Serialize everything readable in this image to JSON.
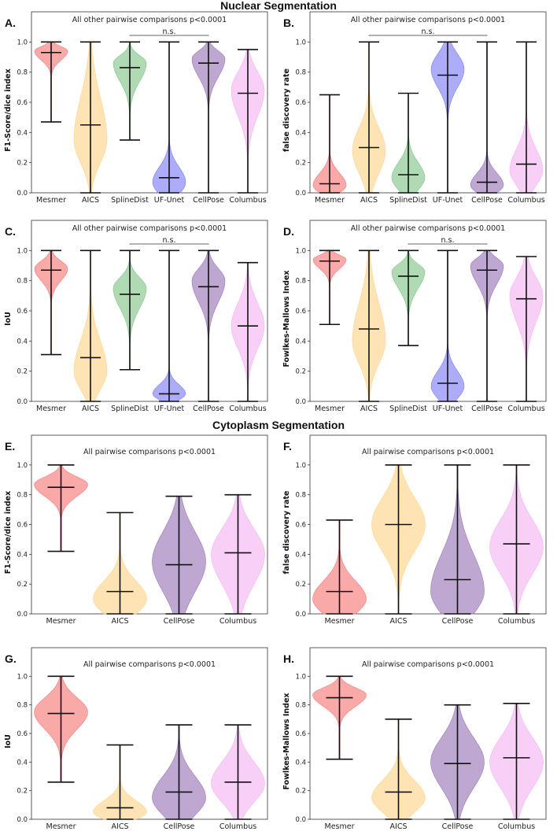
{
  "sections": {
    "nuclear": "Nuclear Segmentation",
    "cytoplasm": "Cytoplasm Segmentation"
  },
  "colors": {
    "Mesmer": "#f77b7b",
    "AICS": "#fdd58c",
    "SplineDist": "#86c68a",
    "UF-Unet": "#7f7ff6",
    "CellPose": "#9b7ab8",
    "Columbus": "#f4b6f1"
  },
  "chart_data": [
    {
      "id": "A",
      "type": "violin",
      "panel_label": "A.",
      "ylabel": "F1-Score/dice index",
      "ylim": [
        0,
        1.2
      ],
      "yticks": [
        "0.0",
        "0.2",
        "0.4",
        "0.6",
        "0.8",
        "1.0"
      ],
      "annotation": "All other pairwise comparisons p<0.0001",
      "ns": {
        "label": "n.s.",
        "between": [
          "SplineDist",
          "CellPose"
        ]
      },
      "categories": [
        "Mesmer",
        "AICS",
        "SplineDist",
        "UF-Unet",
        "CellPose",
        "Columbus"
      ],
      "violins": [
        {
          "min": 0.47,
          "max": 1.0,
          "median": 0.93,
          "mode": 0.94,
          "sd_low": 0.06,
          "sd_high": 0.03
        },
        {
          "min": 0.0,
          "max": 1.0,
          "median": 0.45,
          "mode": 0.35,
          "sd_low": 0.15,
          "sd_high": 0.28
        },
        {
          "min": 0.35,
          "max": 1.0,
          "median": 0.83,
          "mode": 0.86,
          "sd_low": 0.12,
          "sd_high": 0.05
        },
        {
          "min": 0.0,
          "max": 1.0,
          "median": 0.1,
          "mode": 0.07,
          "sd_low": 0.08,
          "sd_high": 0.1
        },
        {
          "min": 0.0,
          "max": 1.0,
          "median": 0.86,
          "mode": 0.89,
          "sd_low": 0.12,
          "sd_high": 0.05
        },
        {
          "min": 0.0,
          "max": 0.95,
          "median": 0.66,
          "mode": 0.68,
          "sd_low": 0.17,
          "sd_high": 0.12
        }
      ]
    },
    {
      "id": "B",
      "type": "violin",
      "panel_label": "B.",
      "ylabel": "false discovery rate",
      "ylim": [
        0,
        1.2
      ],
      "yticks": [
        "0.0",
        "0.2",
        "0.4",
        "0.6",
        "0.8",
        "1.0"
      ],
      "annotation": "All other pairwise comparisons p<0.0001",
      "ns": {
        "label": "n.s.",
        "between": [
          "AICS",
          "CellPose"
        ]
      },
      "categories": [
        "Mesmer",
        "AICS",
        "SplineDist",
        "UF-Unet",
        "CellPose",
        "Columbus"
      ],
      "violins": [
        {
          "min": 0.0,
          "max": 0.65,
          "median": 0.06,
          "mode": 0.05,
          "sd_low": 0.05,
          "sd_high": 0.08
        },
        {
          "min": 0.0,
          "max": 1.0,
          "median": 0.3,
          "mode": 0.28,
          "sd_low": 0.15,
          "sd_high": 0.15
        },
        {
          "min": 0.0,
          "max": 0.66,
          "median": 0.12,
          "mode": 0.1,
          "sd_low": 0.08,
          "sd_high": 0.1
        },
        {
          "min": 0.0,
          "max": 1.0,
          "median": 0.78,
          "mode": 0.82,
          "sd_low": 0.12,
          "sd_high": 0.1
        },
        {
          "min": 0.0,
          "max": 1.0,
          "median": 0.07,
          "mode": 0.05,
          "sd_low": 0.05,
          "sd_high": 0.08
        },
        {
          "min": 0.0,
          "max": 1.0,
          "median": 0.19,
          "mode": 0.15,
          "sd_low": 0.1,
          "sd_high": 0.14
        }
      ]
    },
    {
      "id": "C",
      "type": "violin",
      "panel_label": "C.",
      "ylabel": "IoU",
      "ylim": [
        0,
        1.2
      ],
      "yticks": [
        "0.0",
        "0.2",
        "0.4",
        "0.6",
        "0.8",
        "1.0"
      ],
      "annotation": "All other pairwise comparisons p<0.0001",
      "ns": {
        "label": "n.s.",
        "between": [
          "SplineDist",
          "CellPose"
        ]
      },
      "categories": [
        "Mesmer",
        "AICS",
        "SplineDist",
        "UF-Unet",
        "CellPose",
        "Columbus"
      ],
      "violins": [
        {
          "min": 0.31,
          "max": 1.0,
          "median": 0.87,
          "mode": 0.88,
          "sd_low": 0.08,
          "sd_high": 0.05
        },
        {
          "min": 0.0,
          "max": 1.0,
          "median": 0.29,
          "mode": 0.2,
          "sd_low": 0.12,
          "sd_high": 0.2
        },
        {
          "min": 0.21,
          "max": 1.0,
          "median": 0.71,
          "mode": 0.75,
          "sd_low": 0.13,
          "sd_high": 0.07
        },
        {
          "min": 0.0,
          "max": 1.0,
          "median": 0.05,
          "mode": 0.05,
          "sd_low": 0.04,
          "sd_high": 0.06
        },
        {
          "min": 0.0,
          "max": 1.0,
          "median": 0.76,
          "mode": 0.8,
          "sd_low": 0.14,
          "sd_high": 0.08
        },
        {
          "min": 0.0,
          "max": 0.92,
          "median": 0.5,
          "mode": 0.5,
          "sd_low": 0.15,
          "sd_high": 0.15
        }
      ]
    },
    {
      "id": "D",
      "type": "violin",
      "panel_label": "D.",
      "ylabel": "Fowlkes-Mallows Index",
      "ylim": [
        0,
        1.2
      ],
      "yticks": [
        "0.0",
        "0.2",
        "0.4",
        "0.6",
        "0.8",
        "1.0"
      ],
      "annotation": "All other pairwise comparisons p<0.0001",
      "ns": {
        "label": "n.s.",
        "between": [
          "SplineDist",
          "CellPose"
        ]
      },
      "categories": [
        "Mesmer",
        "AICS",
        "SplineDist",
        "UF-Unet",
        "CellPose",
        "Columbus"
      ],
      "violins": [
        {
          "min": 0.51,
          "max": 1.0,
          "median": 0.93,
          "mode": 0.94,
          "sd_low": 0.06,
          "sd_high": 0.03
        },
        {
          "min": 0.0,
          "max": 1.0,
          "median": 0.48,
          "mode": 0.4,
          "sd_low": 0.15,
          "sd_high": 0.25
        },
        {
          "min": 0.37,
          "max": 1.0,
          "median": 0.83,
          "mode": 0.86,
          "sd_low": 0.11,
          "sd_high": 0.05
        },
        {
          "min": 0.0,
          "max": 1.0,
          "median": 0.12,
          "mode": 0.1,
          "sd_low": 0.08,
          "sd_high": 0.1
        },
        {
          "min": 0.0,
          "max": 1.0,
          "median": 0.87,
          "mode": 0.9,
          "sd_low": 0.12,
          "sd_high": 0.05
        },
        {
          "min": 0.0,
          "max": 0.96,
          "median": 0.68,
          "mode": 0.7,
          "sd_low": 0.17,
          "sd_high": 0.12
        }
      ]
    },
    {
      "id": "E",
      "type": "violin",
      "panel_label": "E.",
      "ylabel": "F1-Score/dice index",
      "ylim": [
        0,
        1.2
      ],
      "yticks": [
        "0.0",
        "0.2",
        "0.4",
        "0.6",
        "0.8",
        "1.0"
      ],
      "annotation": "All pairwise comparisons p<0.0001",
      "ns": null,
      "categories": [
        "Mesmer",
        "AICS",
        "CellPose",
        "Columbus"
      ],
      "violins": [
        {
          "min": 0.42,
          "max": 1.0,
          "median": 0.85,
          "mode": 0.87,
          "sd_low": 0.08,
          "sd_high": 0.05
        },
        {
          "min": 0.0,
          "max": 0.68,
          "median": 0.15,
          "mode": 0.1,
          "sd_low": 0.1,
          "sd_high": 0.12
        },
        {
          "min": 0.0,
          "max": 0.79,
          "median": 0.33,
          "mode": 0.35,
          "sd_low": 0.2,
          "sd_high": 0.2
        },
        {
          "min": 0.0,
          "max": 0.8,
          "median": 0.41,
          "mode": 0.4,
          "sd_low": 0.2,
          "sd_high": 0.17
        }
      ]
    },
    {
      "id": "F",
      "type": "violin",
      "panel_label": "F.",
      "ylabel": "false discovery rate",
      "ylim": [
        0,
        1.2
      ],
      "yticks": [
        "0.0",
        "0.2",
        "0.4",
        "0.6",
        "0.8",
        "1.0"
      ],
      "annotation": "All pairwise comparisons p<0.0001",
      "ns": null,
      "categories": [
        "Mesmer",
        "AICS",
        "CellPose",
        "Columbus"
      ],
      "violins": [
        {
          "min": 0.0,
          "max": 0.63,
          "median": 0.15,
          "mode": 0.1,
          "sd_low": 0.1,
          "sd_high": 0.12
        },
        {
          "min": 0.0,
          "max": 1.0,
          "median": 0.6,
          "mode": 0.6,
          "sd_low": 0.18,
          "sd_high": 0.18
        },
        {
          "min": 0.0,
          "max": 1.0,
          "median": 0.23,
          "mode": 0.15,
          "sd_low": 0.15,
          "sd_high": 0.25
        },
        {
          "min": 0.0,
          "max": 1.0,
          "median": 0.47,
          "mode": 0.45,
          "sd_low": 0.18,
          "sd_high": 0.18
        }
      ]
    },
    {
      "id": "G",
      "type": "violin",
      "panel_label": "G.",
      "ylabel": "IoU",
      "ylim": [
        0,
        1.2
      ],
      "yticks": [
        "0.0",
        "0.2",
        "0.4",
        "0.6",
        "0.8",
        "1.0"
      ],
      "annotation": "All pairwise comparisons p<0.0001",
      "ns": null,
      "categories": [
        "Mesmer",
        "AICS",
        "CellPose",
        "Columbus"
      ],
      "violins": [
        {
          "min": 0.26,
          "max": 1.0,
          "median": 0.74,
          "mode": 0.75,
          "sd_low": 0.12,
          "sd_high": 0.1
        },
        {
          "min": 0.0,
          "max": 0.52,
          "median": 0.08,
          "mode": 0.05,
          "sd_low": 0.05,
          "sd_high": 0.08
        },
        {
          "min": 0.0,
          "max": 0.66,
          "median": 0.19,
          "mode": 0.15,
          "sd_low": 0.12,
          "sd_high": 0.15
        },
        {
          "min": 0.0,
          "max": 0.66,
          "median": 0.26,
          "mode": 0.25,
          "sd_low": 0.13,
          "sd_high": 0.15
        }
      ]
    },
    {
      "id": "H",
      "type": "violin",
      "panel_label": "H.",
      "ylabel": "Fowlkes-Mallows Index",
      "ylim": [
        0,
        1.2
      ],
      "yticks": [
        "0.0",
        "0.2",
        "0.4",
        "0.6",
        "0.8",
        "1.0"
      ],
      "annotation": "All pairwise comparisons p<0.0001",
      "ns": null,
      "categories": [
        "Mesmer",
        "AICS",
        "CellPose",
        "Columbus"
      ],
      "violins": [
        {
          "min": 0.42,
          "max": 1.0,
          "median": 0.85,
          "mode": 0.87,
          "sd_low": 0.08,
          "sd_high": 0.05
        },
        {
          "min": 0.0,
          "max": 0.7,
          "median": 0.19,
          "mode": 0.15,
          "sd_low": 0.1,
          "sd_high": 0.12
        },
        {
          "min": 0.0,
          "max": 0.8,
          "median": 0.39,
          "mode": 0.4,
          "sd_low": 0.18,
          "sd_high": 0.17
        },
        {
          "min": 0.0,
          "max": 0.81,
          "median": 0.43,
          "mode": 0.4,
          "sd_low": 0.18,
          "sd_high": 0.17
        }
      ]
    }
  ]
}
